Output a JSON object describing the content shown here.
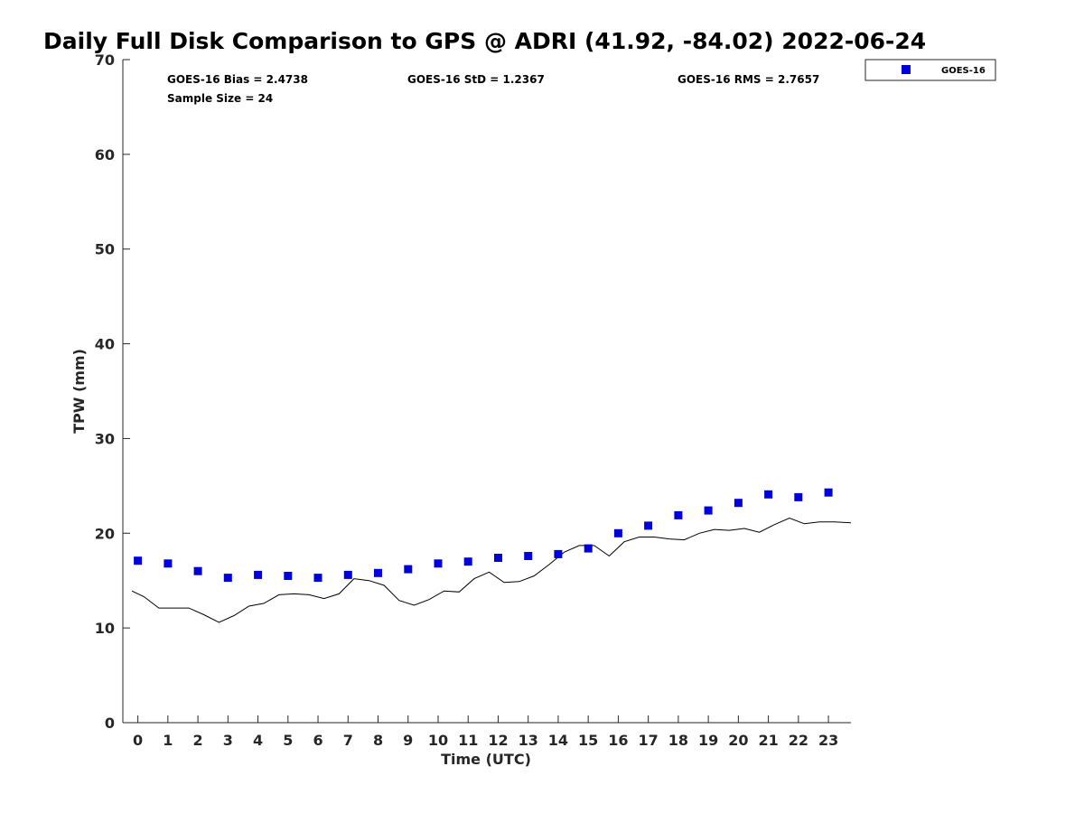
{
  "chart_data": {
    "type": "scatter",
    "title": "Daily Full Disk Comparison to GPS @ ADRI (41.92, -84.02) 2022-06-24",
    "xlabel": "Time (UTC)",
    "ylabel": "TPW (mm)",
    "xlim": [
      -0.5,
      23.75
    ],
    "ylim": [
      0,
      70
    ],
    "x_ticks": [
      0,
      1,
      2,
      3,
      4,
      5,
      6,
      7,
      8,
      9,
      10,
      11,
      12,
      13,
      14,
      15,
      16,
      17,
      18,
      19,
      20,
      21,
      22,
      23
    ],
    "y_ticks": [
      0,
      10,
      20,
      30,
      40,
      50,
      60,
      70
    ],
    "grid": false,
    "legend": {
      "position": "top-right",
      "entries": [
        "GOES-16"
      ]
    },
    "stats": {
      "bias": "GOES-16 Bias = 2.4738",
      "std": "GOES-16 StD = 1.2367",
      "rms": "GOES-16 RMS = 2.7657",
      "sample": "Sample Size = 24"
    },
    "series": [
      {
        "name": "GOES-16",
        "kind": "scatter",
        "marker": "square",
        "color": "#0000dd",
        "x": [
          0,
          1,
          2,
          3,
          4,
          5,
          6,
          7,
          8,
          9,
          10,
          11,
          12,
          13,
          14,
          15,
          16,
          17,
          18,
          19,
          20,
          21,
          22,
          23
        ],
        "y": [
          17.1,
          16.8,
          16.0,
          15.3,
          15.6,
          15.5,
          15.3,
          15.6,
          15.8,
          16.2,
          16.8,
          17.0,
          17.4,
          17.6,
          17.8,
          18.4,
          20.0,
          20.8,
          21.9,
          22.4,
          23.2,
          24.1,
          23.8,
          24.3
        ]
      },
      {
        "kind": "line",
        "color": "#000000",
        "x": [
          -0.2,
          0.2,
          0.7,
          1.2,
          1.7,
          2.2,
          2.7,
          3.2,
          3.7,
          4.2,
          4.7,
          5.2,
          5.7,
          6.2,
          6.7,
          7.2,
          7.7,
          8.2,
          8.7,
          9.2,
          9.7,
          10.2,
          10.7,
          11.2,
          11.7,
          12.2,
          12.7,
          13.2,
          13.7,
          14.2,
          14.7,
          15.2,
          15.7,
          16.2,
          16.7,
          17.2,
          17.7,
          18.2,
          18.7,
          19.2,
          19.7,
          20.2,
          20.7,
          21.2,
          21.7,
          22.2,
          22.7,
          23.2,
          23.75
        ],
        "y": [
          13.9,
          13.3,
          12.1,
          12.1,
          12.1,
          11.4,
          10.6,
          11.3,
          12.3,
          12.6,
          13.5,
          13.6,
          13.5,
          13.1,
          13.6,
          15.2,
          15.0,
          14.5,
          12.9,
          12.4,
          13.0,
          13.9,
          13.8,
          15.2,
          15.9,
          14.8,
          14.9,
          15.5,
          16.7,
          18.0,
          18.7,
          18.7,
          17.6,
          19.1,
          19.6,
          19.6,
          19.4,
          19.3,
          20.0,
          20.4,
          20.3,
          20.5,
          20.1,
          20.9,
          21.6,
          21.0,
          21.2,
          21.2,
          21.1
        ]
      }
    ]
  }
}
